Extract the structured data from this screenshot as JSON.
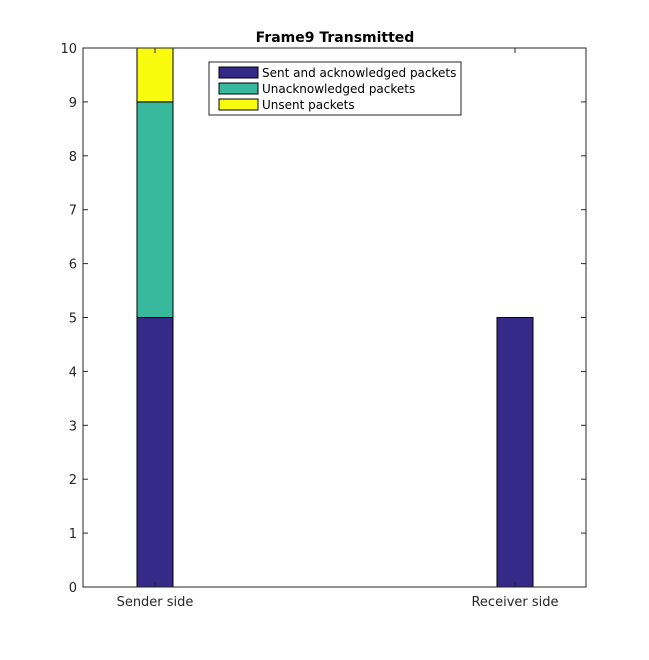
{
  "chart_data": {
    "type": "bar",
    "stacked": true,
    "title": "Frame9 Transmitted",
    "xlabel": "",
    "ylabel": "",
    "categories": [
      "Sender side",
      "Receiver side"
    ],
    "series": [
      {
        "name": "Sent and acknowledged packets",
        "values": [
          5,
          5
        ],
        "color": "#352a87"
      },
      {
        "name": "Unacknowledged packets",
        "values": [
          4,
          0
        ],
        "color": "#38b99e"
      },
      {
        "name": "Unsent packets",
        "values": [
          1,
          0
        ],
        "color": "#f9fb0e"
      }
    ],
    "ylim": [
      0,
      10
    ],
    "yticks": [
      "0",
      "1",
      "2",
      "3",
      "4",
      "5",
      "6",
      "7",
      "8",
      "9",
      "10"
    ],
    "grid": false,
    "legend_position": "top"
  }
}
